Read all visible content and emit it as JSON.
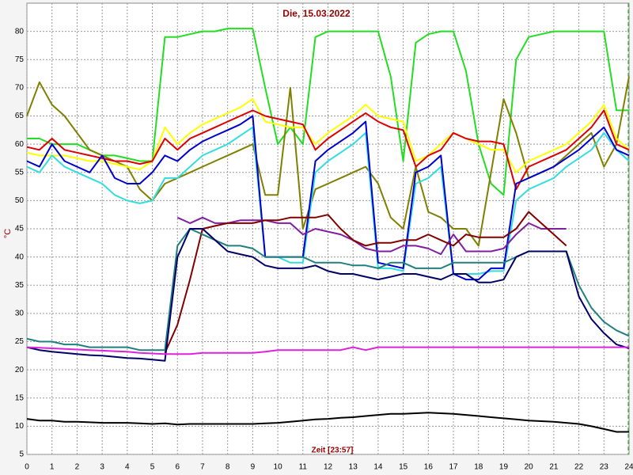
{
  "chart_data": {
    "type": "line",
    "title": "Die, 15.03.2022",
    "y_label": "°C",
    "x_label": "Zeit [23:57]",
    "xlim": [
      0,
      24
    ],
    "xticks": [
      0,
      1,
      2,
      3,
      4,
      5,
      6,
      7,
      8,
      9,
      10,
      11,
      12,
      13,
      14,
      15,
      16,
      17,
      18,
      19,
      20,
      21,
      22,
      23,
      24
    ],
    "ylim": [
      5,
      85
    ],
    "yticks": [
      5,
      10,
      15,
      20,
      25,
      30,
      35,
      40,
      45,
      50,
      55,
      60,
      65,
      70,
      75,
      80
    ],
    "grid": true,
    "x": [
      0,
      0.5,
      1,
      1.5,
      2,
      2.5,
      3,
      3.5,
      4,
      4.5,
      5,
      5.5,
      6,
      6.5,
      7,
      7.5,
      8,
      8.5,
      9,
      9.5,
      10,
      10.5,
      11,
      11.5,
      12,
      12.5,
      13,
      13.5,
      14,
      14.5,
      15,
      15.5,
      16,
      16.5,
      17,
      17.5,
      18,
      18.5,
      19,
      19.5,
      20,
      20.5,
      21,
      21.5,
      22,
      22.5,
      23,
      23.5,
      24
    ],
    "series": [
      {
        "color": "#22dd22",
        "values": [
          61,
          61,
          60,
          60,
          60,
          59,
          58,
          58,
          57.5,
          57,
          57,
          79,
          79,
          79.5,
          80,
          80,
          80.5,
          80.5,
          80.5,
          70,
          60,
          63,
          60,
          79,
          80,
          80,
          80,
          80,
          80,
          72,
          57,
          78,
          79.5,
          80,
          80,
          73,
          60,
          53,
          51,
          75,
          79,
          79.5,
          80,
          80,
          80,
          80,
          80,
          66,
          66
        ]
      },
      {
        "color": "#808000",
        "values": [
          65,
          71,
          67,
          65,
          62,
          59,
          58,
          57,
          56,
          52,
          50,
          53,
          54,
          55,
          56,
          57,
          58,
          59,
          60,
          51,
          51,
          70,
          45,
          52,
          53,
          54,
          55,
          56,
          53,
          47,
          45,
          56,
          48,
          47,
          45,
          45,
          42,
          55,
          68,
          62,
          54,
          55,
          56,
          58,
          60,
          62,
          56,
          60,
          72
        ]
      },
      {
        "color": "#ffff00",
        "values": [
          58.5,
          58,
          58,
          58,
          57.5,
          57,
          57,
          56.5,
          56,
          55.5,
          57,
          63,
          60,
          62,
          63.5,
          64.5,
          65.5,
          66.5,
          68,
          64,
          63.5,
          63,
          63,
          60,
          62,
          63.5,
          65,
          67,
          65,
          64.5,
          64,
          57,
          58,
          60,
          62,
          61,
          60,
          59,
          59,
          55,
          57,
          58,
          59,
          60,
          62,
          64,
          67,
          61,
          59
        ]
      },
      {
        "color": "#dd0000",
        "values": [
          59.5,
          59,
          61,
          59,
          58.5,
          58,
          57.5,
          57,
          57,
          56.5,
          57,
          61,
          59,
          61,
          62,
          63,
          64,
          65,
          66,
          65,
          64.5,
          64,
          63.5,
          59,
          61,
          62.5,
          64,
          65.5,
          64,
          63,
          62.5,
          56,
          58,
          59,
          62,
          61,
          60.5,
          60.5,
          60,
          52,
          56,
          57,
          58,
          59,
          61,
          63,
          66,
          60,
          59
        ]
      },
      {
        "color": "#33dddd",
        "values": [
          56,
          55,
          58,
          56,
          55,
          54,
          53,
          51,
          50,
          49.5,
          50,
          54,
          54,
          56,
          58,
          59,
          60,
          61.5,
          63,
          40,
          40,
          39,
          39,
          55,
          57,
          58.5,
          60,
          62,
          38,
          38,
          37.5,
          53,
          54,
          56,
          37,
          37,
          37,
          37.5,
          37.5,
          50,
          52,
          53,
          54,
          56,
          57.5,
          59,
          62,
          59,
          57
        ]
      },
      {
        "color": "#0000cc",
        "values": [
          57,
          56,
          60,
          57,
          56,
          55,
          58,
          54,
          53,
          53,
          55,
          58,
          57,
          59,
          60.5,
          61.5,
          62.5,
          63.5,
          65,
          40,
          40,
          40,
          40,
          57,
          59,
          60.5,
          62,
          64,
          39,
          38.5,
          38,
          55,
          56,
          58,
          37,
          36,
          36,
          38,
          38,
          53,
          54,
          55,
          56,
          57.5,
          59,
          61,
          63,
          59,
          58
        ]
      },
      {
        "color": "#7f1f9f",
        "values": [
          null,
          null,
          null,
          null,
          null,
          null,
          null,
          null,
          null,
          null,
          null,
          null,
          47,
          46,
          47,
          46,
          46,
          46.5,
          46.5,
          46.5,
          46,
          46,
          44,
          45,
          44.5,
          44,
          43,
          41.5,
          41,
          41,
          42,
          42,
          41.5,
          40.5,
          44,
          41,
          41,
          41,
          41.5,
          44,
          46,
          45,
          45,
          45,
          null,
          null,
          null,
          null,
          null
        ]
      },
      {
        "color": "#800000",
        "values": [
          null,
          null,
          null,
          null,
          null,
          null,
          null,
          null,
          null,
          null,
          null,
          23,
          28,
          36,
          45,
          45.5,
          46,
          46,
          46,
          46.5,
          46.5,
          47,
          47,
          47,
          47.5,
          45,
          43,
          42,
          42.5,
          42.5,
          43,
          43,
          44,
          43,
          42,
          44,
          43.5,
          43.5,
          43.5,
          45,
          48,
          46,
          44,
          42,
          null,
          null,
          null,
          null,
          null
        ]
      },
      {
        "color": "#208080",
        "values": [
          25.5,
          25,
          25,
          24.5,
          24.5,
          24,
          24,
          24,
          24,
          23.5,
          23.5,
          23.5,
          42,
          45,
          44,
          43,
          42,
          42,
          41.5,
          40,
          40,
          40,
          40,
          39,
          39,
          39,
          38.5,
          38.5,
          38,
          39,
          39,
          38,
          38,
          38,
          39,
          39,
          39,
          39,
          39,
          40,
          41,
          41,
          41,
          41,
          35,
          31,
          28.5,
          27,
          26
        ]
      },
      {
        "color": "#000066",
        "values": [
          24,
          23.5,
          23.2,
          23,
          22.8,
          22.6,
          22.5,
          22.3,
          22.1,
          22,
          21.8,
          21.6,
          40,
          45,
          45,
          43,
          41,
          40.5,
          40,
          38.5,
          38,
          38,
          38,
          38.5,
          37.5,
          37,
          37,
          36.5,
          36,
          36.5,
          37,
          37,
          36.5,
          36,
          37,
          37,
          35.5,
          35.5,
          36,
          40,
          41,
          41,
          41,
          41,
          33,
          29,
          26.5,
          24.5,
          23.8
        ]
      },
      {
        "color": "#dd22dd",
        "values": [
          24,
          23.9,
          23.8,
          23.7,
          23.6,
          23.5,
          23.4,
          23.3,
          23.2,
          23,
          22.9,
          22.8,
          22.8,
          22.8,
          23,
          23,
          23,
          23,
          23,
          23.2,
          23.5,
          23.5,
          23.5,
          23.5,
          23.5,
          23.5,
          24,
          23.5,
          24,
          24,
          24,
          24,
          24,
          24,
          24,
          24,
          24,
          24,
          24,
          24,
          24,
          24,
          24,
          24,
          24,
          24,
          24,
          24,
          24
        ]
      },
      {
        "color": "#000000",
        "values": [
          11.3,
          11,
          11,
          10.8,
          10.8,
          10.7,
          10.6,
          10.6,
          10.6,
          10.5,
          10.4,
          10.5,
          10.3,
          10.4,
          10.4,
          10.4,
          10.4,
          10.4,
          10.4,
          10.5,
          10.6,
          10.8,
          11,
          11.2,
          11.3,
          11.5,
          11.6,
          11.8,
          12,
          12.2,
          12.2,
          12.3,
          12.4,
          12.3,
          12.2,
          12,
          11.8,
          11.6,
          11.4,
          11.2,
          11,
          10.9,
          10.8,
          10.6,
          10.4,
          10,
          9.5,
          9,
          9
        ]
      }
    ]
  }
}
